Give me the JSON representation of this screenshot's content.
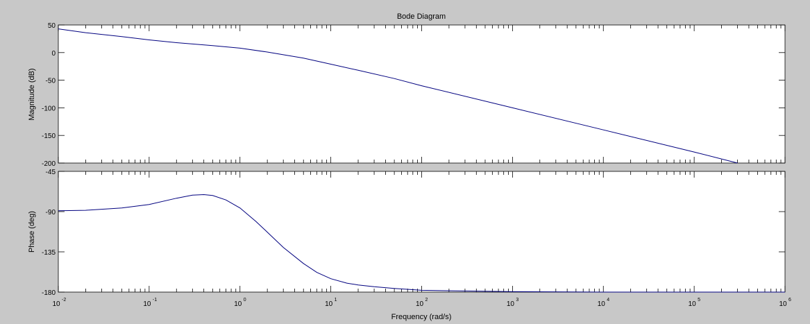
{
  "chart_data": {
    "type": "line",
    "title": "Bode Diagram",
    "xlabel": "Frequency  (rad/s)",
    "x_scale": "log",
    "xlim": [
      0.01,
      1000000
    ],
    "x_tick_labels": [
      {
        "base": "10",
        "exp": "-2"
      },
      {
        "base": "10",
        "exp": "-1"
      },
      {
        "base": "10",
        "exp": "0"
      },
      {
        "base": "10",
        "exp": "1"
      },
      {
        "base": "10",
        "exp": "2"
      },
      {
        "base": "10",
        "exp": "3"
      },
      {
        "base": "10",
        "exp": "4"
      },
      {
        "base": "10",
        "exp": "5"
      },
      {
        "base": "10",
        "exp": "6"
      }
    ],
    "line_color": "#00007f",
    "grid": false,
    "panels": [
      {
        "name": "magnitude",
        "ylabel": "Magnitude (dB)",
        "ylim": [
          -200,
          50
        ],
        "y_ticks": [
          50,
          0,
          -50,
          -100,
          -150,
          -200
        ],
        "y_tick_labels": [
          "50",
          "0",
          "-50",
          "-100",
          "-150",
          "-200"
        ],
        "x": [
          0.01,
          0.02,
          0.05,
          0.1,
          0.2,
          0.5,
          1,
          2,
          5,
          10,
          20,
          50,
          100,
          1000,
          10000,
          100000,
          300000
        ],
        "y": [
          43,
          36,
          29,
          23,
          18,
          12.5,
          8,
          1,
          -10,
          -21,
          -32,
          -47,
          -60,
          -100,
          -140,
          -180,
          -200
        ]
      },
      {
        "name": "phase",
        "ylabel": "Phase (deg)",
        "ylim": [
          -180,
          -45
        ],
        "y_ticks": [
          -45,
          -90,
          -135,
          -180
        ],
        "y_tick_labels": [
          "-45",
          "-90",
          "-135",
          "-180"
        ],
        "x": [
          0.01,
          0.02,
          0.05,
          0.1,
          0.2,
          0.3,
          0.4,
          0.5,
          0.7,
          1,
          1.5,
          2,
          3,
          5,
          7,
          10,
          15,
          20,
          30,
          50,
          100,
          1000,
          10000,
          100000,
          1000000
        ],
        "y": [
          -89,
          -88.5,
          -86,
          -82,
          -75,
          -71.5,
          -71,
          -72,
          -77,
          -86,
          -101,
          -113,
          -130,
          -148,
          -158,
          -165,
          -170,
          -172,
          -174,
          -176,
          -178,
          -179.5,
          -180,
          -180,
          -180
        ]
      }
    ]
  }
}
